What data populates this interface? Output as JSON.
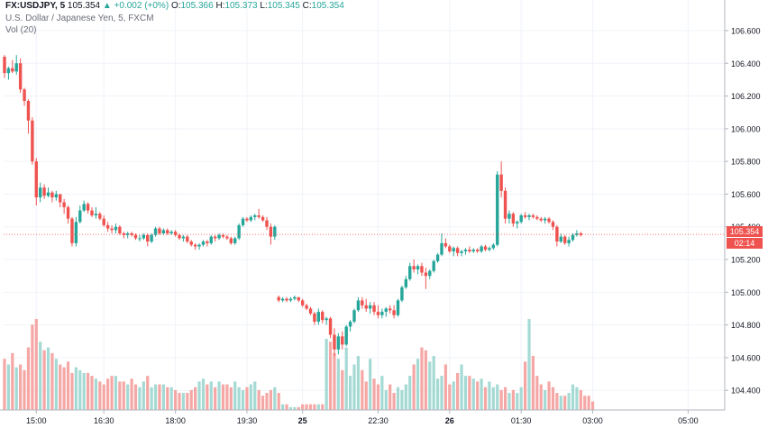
{
  "legend": {
    "symbol": "FX:USDJPY, 5",
    "last": "105.354",
    "change": "+0.002 (+0%)",
    "o_label": "O:",
    "o": "105.366",
    "h_label": "H:",
    "h": "105.373",
    "l_label": "L:",
    "l": "105.345",
    "c_label": "C:",
    "c": "105.354",
    "title": "U.S. Dollar / Japanese Yen, 5, FXCM",
    "vol": "Vol (20)"
  },
  "price_tag": {
    "price": "105.354",
    "countdown": "02:14"
  },
  "colors": {
    "up": "#26a69a",
    "down": "#ef5350",
    "up_vol": "#a5dad4",
    "down_vol": "#f5a7a5",
    "grid": "#f0f3fa",
    "axis_text": "#131722"
  },
  "chart_data": {
    "type": "candlestick",
    "title": "U.S. Dollar / Japanese Yen, 5, FXCM",
    "symbol": "FX:USDJPY",
    "interval": "5",
    "y_ticks": [
      "106.600",
      "106.400",
      "106.200",
      "106.000",
      "105.800",
      "105.600",
      "105.400",
      "105.200",
      "105.000",
      "104.800",
      "104.600",
      "104.400"
    ],
    "y_tick_values": [
      106.6,
      106.4,
      106.2,
      106.0,
      105.8,
      105.6,
      105.4,
      105.2,
      105.0,
      104.8,
      104.6,
      104.4
    ],
    "ylim": [
      104.28,
      106.71
    ],
    "x_ticks": [
      "15:00",
      "16:30",
      "18:00",
      "19:30",
      "25",
      "22:30",
      "26",
      "01:30",
      "03:00",
      "05:00"
    ],
    "x_tick_bar_index": [
      8,
      25,
      43,
      61,
      75,
      94,
      112,
      130,
      148,
      172
    ],
    "bar_count": 177,
    "last_price": 105.354,
    "candles": [
      [
        106.44,
        106.45,
        106.31,
        106.34
      ],
      [
        106.34,
        106.38,
        106.3,
        106.37
      ],
      [
        106.37,
        106.42,
        106.34,
        106.35
      ],
      [
        106.35,
        106.45,
        106.33,
        106.4
      ],
      [
        106.4,
        106.43,
        106.22,
        106.24
      ],
      [
        106.24,
        106.25,
        106.14,
        106.17
      ],
      [
        106.17,
        106.18,
        105.97,
        106.05
      ],
      [
        106.05,
        106.07,
        105.78,
        105.8
      ],
      [
        105.8,
        105.82,
        105.53,
        105.58
      ],
      [
        105.58,
        105.67,
        105.55,
        105.64
      ],
      [
        105.64,
        105.66,
        105.57,
        105.59
      ],
      [
        105.59,
        105.64,
        105.58,
        105.61
      ],
      [
        105.61,
        105.62,
        105.55,
        105.58
      ],
      [
        105.58,
        105.62,
        105.56,
        105.6
      ],
      [
        105.6,
        105.6,
        105.52,
        105.55
      ],
      [
        105.55,
        105.57,
        105.48,
        105.52
      ],
      [
        105.52,
        105.53,
        105.42,
        105.45
      ],
      [
        105.45,
        105.46,
        105.28,
        105.3
      ],
      [
        105.3,
        105.46,
        105.28,
        105.43
      ],
      [
        105.43,
        105.53,
        105.42,
        105.5
      ],
      [
        105.5,
        105.56,
        105.49,
        105.54
      ],
      [
        105.54,
        105.55,
        105.48,
        105.5
      ],
      [
        105.5,
        105.52,
        105.46,
        105.47
      ],
      [
        105.47,
        105.52,
        105.45,
        105.48
      ],
      [
        105.48,
        105.49,
        105.44,
        105.45
      ],
      [
        105.45,
        105.47,
        105.4,
        105.41
      ],
      [
        105.41,
        105.43,
        105.37,
        105.39
      ],
      [
        105.39,
        105.41,
        105.36,
        105.38
      ],
      [
        105.38,
        105.42,
        105.36,
        105.4
      ],
      [
        105.4,
        105.41,
        105.35,
        105.36
      ],
      [
        105.36,
        105.37,
        105.33,
        105.35
      ],
      [
        105.35,
        105.37,
        105.33,
        105.36
      ],
      [
        105.36,
        105.37,
        105.34,
        105.35
      ],
      [
        105.35,
        105.36,
        105.32,
        105.33
      ],
      [
        105.33,
        105.35,
        105.31,
        105.33
      ],
      [
        105.33,
        105.36,
        105.32,
        105.35
      ],
      [
        105.35,
        105.36,
        105.28,
        105.31
      ],
      [
        105.31,
        105.36,
        105.3,
        105.35
      ],
      [
        105.35,
        105.4,
        105.34,
        105.39
      ],
      [
        105.39,
        105.4,
        105.35,
        105.36
      ],
      [
        105.36,
        105.39,
        105.35,
        105.38
      ],
      [
        105.38,
        105.39,
        105.35,
        105.36
      ],
      [
        105.36,
        105.38,
        105.35,
        105.37
      ],
      [
        105.37,
        105.38,
        105.34,
        105.35
      ],
      [
        105.35,
        105.36,
        105.32,
        105.33
      ],
      [
        105.33,
        105.35,
        105.31,
        105.34
      ],
      [
        105.34,
        105.35,
        105.3,
        105.31
      ],
      [
        105.31,
        105.32,
        105.28,
        105.29
      ],
      [
        105.29,
        105.3,
        105.26,
        105.28
      ],
      [
        105.28,
        105.3,
        105.26,
        105.29
      ],
      [
        105.29,
        105.32,
        105.28,
        105.31
      ],
      [
        105.31,
        105.32,
        105.28,
        105.3
      ],
      [
        105.3,
        105.35,
        105.29,
        105.34
      ],
      [
        105.34,
        105.35,
        105.31,
        105.33
      ],
      [
        105.33,
        105.36,
        105.32,
        105.35
      ],
      [
        105.35,
        105.36,
        105.33,
        105.34
      ],
      [
        105.34,
        105.35,
        105.32,
        105.33
      ],
      [
        105.33,
        105.34,
        105.29,
        105.3
      ],
      [
        105.3,
        105.34,
        105.29,
        105.33
      ],
      [
        105.33,
        105.42,
        105.32,
        105.41
      ],
      [
        105.41,
        105.46,
        105.4,
        105.45
      ],
      [
        105.45,
        105.46,
        105.43,
        105.44
      ],
      [
        105.44,
        105.47,
        105.43,
        105.46
      ],
      [
        105.46,
        105.48,
        105.44,
        105.47
      ],
      [
        105.47,
        105.51,
        105.45,
        105.46
      ],
      [
        105.46,
        105.47,
        105.43,
        105.44
      ],
      [
        105.44,
        105.46,
        105.38,
        105.4
      ],
      [
        105.4,
        105.42,
        105.29,
        105.34
      ],
      [
        105.34,
        105.41,
        105.32,
        105.4
      ],
      [
        104.97,
        104.98,
        104.94,
        104.95
      ],
      [
        104.95,
        104.97,
        104.94,
        104.96
      ],
      [
        104.96,
        104.97,
        104.94,
        104.95
      ],
      [
        104.95,
        104.97,
        104.94,
        104.96
      ],
      [
        104.96,
        104.98,
        104.95,
        104.97
      ],
      [
        104.97,
        104.97,
        104.94,
        104.95
      ],
      [
        104.95,
        104.96,
        104.91,
        104.92
      ],
      [
        104.92,
        104.93,
        104.89,
        104.9
      ],
      [
        104.9,
        104.91,
        104.86,
        104.87
      ],
      [
        104.87,
        104.88,
        104.8,
        104.82
      ],
      [
        104.82,
        104.9,
        104.8,
        104.88
      ],
      [
        104.88,
        104.89,
        104.81,
        104.83
      ],
      [
        104.83,
        104.85,
        104.8,
        104.84
      ],
      [
        104.84,
        104.85,
        104.72,
        104.74
      ],
      [
        104.74,
        104.78,
        104.61,
        104.65
      ],
      [
        104.65,
        104.75,
        104.62,
        104.73
      ],
      [
        104.73,
        104.76,
        104.65,
        104.68
      ],
      [
        104.68,
        104.8,
        104.67,
        104.79
      ],
      [
        104.79,
        104.83,
        104.76,
        104.82
      ],
      [
        104.82,
        104.9,
        104.81,
        104.89
      ],
      [
        104.89,
        104.97,
        104.88,
        104.95
      ],
      [
        104.95,
        104.97,
        104.9,
        104.92
      ],
      [
        104.92,
        104.96,
        104.88,
        104.9
      ],
      [
        104.9,
        104.94,
        104.87,
        104.92
      ],
      [
        104.92,
        104.94,
        104.86,
        104.88
      ],
      [
        104.88,
        104.92,
        104.84,
        104.86
      ],
      [
        104.86,
        104.9,
        104.84,
        104.88
      ],
      [
        104.88,
        104.91,
        104.85,
        104.9
      ],
      [
        104.9,
        104.92,
        104.87,
        104.89
      ],
      [
        104.89,
        104.92,
        104.84,
        104.86
      ],
      [
        104.86,
        104.96,
        104.85,
        104.95
      ],
      [
        104.95,
        105.04,
        104.94,
        105.03
      ],
      [
        105.03,
        105.1,
        105.02,
        105.08
      ],
      [
        105.08,
        105.18,
        105.07,
        105.16
      ],
      [
        105.16,
        105.2,
        105.12,
        105.14
      ],
      [
        105.14,
        105.17,
        105.11,
        105.16
      ],
      [
        105.16,
        105.18,
        105.1,
        105.12
      ],
      [
        105.12,
        105.15,
        105.02,
        105.1
      ],
      [
        105.1,
        105.14,
        105.08,
        105.13
      ],
      [
        105.13,
        105.2,
        105.12,
        105.19
      ],
      [
        105.19,
        105.24,
        105.18,
        105.23
      ],
      [
        105.23,
        105.36,
        105.22,
        105.3
      ],
      [
        105.3,
        105.33,
        105.27,
        105.28
      ],
      [
        105.28,
        105.29,
        105.24,
        105.25
      ],
      [
        105.25,
        105.28,
        105.22,
        105.27
      ],
      [
        105.27,
        105.28,
        105.22,
        105.24
      ],
      [
        105.24,
        105.26,
        105.22,
        105.25
      ],
      [
        105.25,
        105.27,
        105.23,
        105.26
      ],
      [
        105.26,
        105.28,
        105.24,
        105.25
      ],
      [
        105.25,
        105.27,
        105.24,
        105.26
      ],
      [
        105.26,
        105.27,
        105.24,
        105.25
      ],
      [
        105.25,
        105.29,
        105.24,
        105.28
      ],
      [
        105.28,
        105.29,
        105.25,
        105.26
      ],
      [
        105.26,
        105.28,
        105.25,
        105.27
      ],
      [
        105.27,
        105.3,
        105.26,
        105.29
      ],
      [
        105.29,
        105.74,
        105.28,
        105.72
      ],
      [
        105.72,
        105.8,
        105.58,
        105.62
      ],
      [
        105.62,
        105.64,
        105.42,
        105.45
      ],
      [
        105.45,
        105.5,
        105.42,
        105.48
      ],
      [
        105.48,
        105.49,
        105.4,
        105.42
      ],
      [
        105.42,
        105.44,
        105.39,
        105.43
      ],
      [
        105.43,
        105.48,
        105.42,
        105.47
      ],
      [
        105.47,
        105.49,
        105.45,
        105.46
      ],
      [
        105.46,
        105.48,
        105.44,
        105.47
      ],
      [
        105.47,
        105.48,
        105.45,
        105.46
      ],
      [
        105.46,
        105.47,
        105.44,
        105.45
      ],
      [
        105.45,
        105.46,
        105.43,
        105.44
      ],
      [
        105.44,
        105.46,
        105.42,
        105.45
      ],
      [
        105.45,
        105.46,
        105.42,
        105.43
      ],
      [
        105.43,
        105.44,
        105.38,
        105.4
      ],
      [
        105.4,
        105.41,
        105.28,
        105.31
      ],
      [
        105.31,
        105.36,
        105.3,
        105.34
      ],
      [
        105.34,
        105.35,
        105.29,
        105.3
      ],
      [
        105.3,
        105.34,
        105.28,
        105.32
      ],
      [
        105.32,
        105.36,
        105.31,
        105.35
      ],
      [
        105.35,
        105.38,
        105.34,
        105.36
      ],
      [
        105.36,
        105.37,
        105.34,
        105.35
      ]
    ],
    "volumes": [
      18,
      16,
      20,
      15,
      16,
      14,
      22,
      30,
      32,
      24,
      21,
      22,
      20,
      18,
      16,
      15,
      17,
      13,
      15,
      14,
      13,
      13,
      12,
      11,
      10,
      9,
      11,
      12,
      12,
      10,
      10,
      9,
      11,
      9,
      8,
      10,
      12,
      8,
      9,
      9,
      9,
      8,
      8,
      7,
      6,
      6,
      6,
      7,
      8,
      10,
      11,
      9,
      10,
      8,
      10,
      9,
      9,
      8,
      10,
      8,
      7,
      8,
      9,
      10,
      7,
      5,
      6,
      7,
      8,
      6,
      2,
      2,
      1,
      1,
      1,
      2,
      2,
      2,
      2,
      2,
      2,
      25,
      24,
      20,
      18,
      14,
      22,
      12,
      16,
      19,
      14,
      10,
      18,
      11,
      9,
      12,
      7,
      9,
      6,
      8,
      7,
      9,
      12,
      16,
      18,
      22,
      21,
      17,
      19,
      11,
      12,
      16,
      9,
      10,
      13,
      16,
      12,
      12,
      11,
      10,
      11,
      8,
      10,
      8,
      9,
      7,
      8,
      6,
      7,
      6,
      8,
      17,
      32,
      19,
      12,
      9,
      7,
      10,
      8,
      6,
      5,
      5,
      6,
      9,
      8,
      7,
      5,
      5,
      3
    ]
  }
}
